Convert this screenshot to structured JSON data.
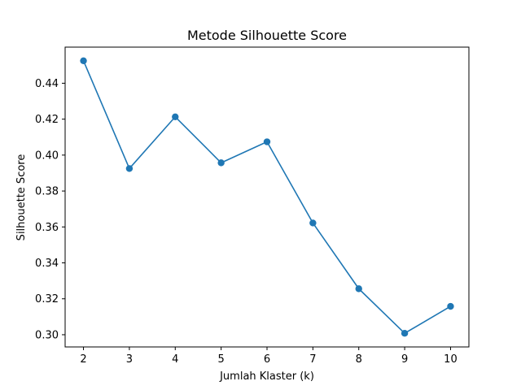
{
  "chart_data": {
    "type": "line",
    "title": "Metode Silhouette Score",
    "xlabel": "Jumlah Klaster (k)",
    "ylabel": "Silhouette Score",
    "x": [
      2,
      3,
      4,
      5,
      6,
      7,
      8,
      9,
      10
    ],
    "series": [
      {
        "values": [
          0.4525,
          0.3925,
          0.4213,
          0.3957,
          0.4074,
          0.3622,
          0.3256,
          0.3008,
          0.3158
        ],
        "color": "#1f77b4",
        "marker": "circle"
      }
    ],
    "xticks": [
      "2",
      "3",
      "4",
      "5",
      "6",
      "7",
      "8",
      "9",
      "10"
    ],
    "yticks": [
      "0.30",
      "0.32",
      "0.34",
      "0.36",
      "0.38",
      "0.40",
      "0.42",
      "0.44"
    ],
    "xlim": [
      1.6,
      10.4
    ],
    "ylim": [
      0.2932,
      0.4601
    ],
    "grid": false,
    "legend": false
  }
}
